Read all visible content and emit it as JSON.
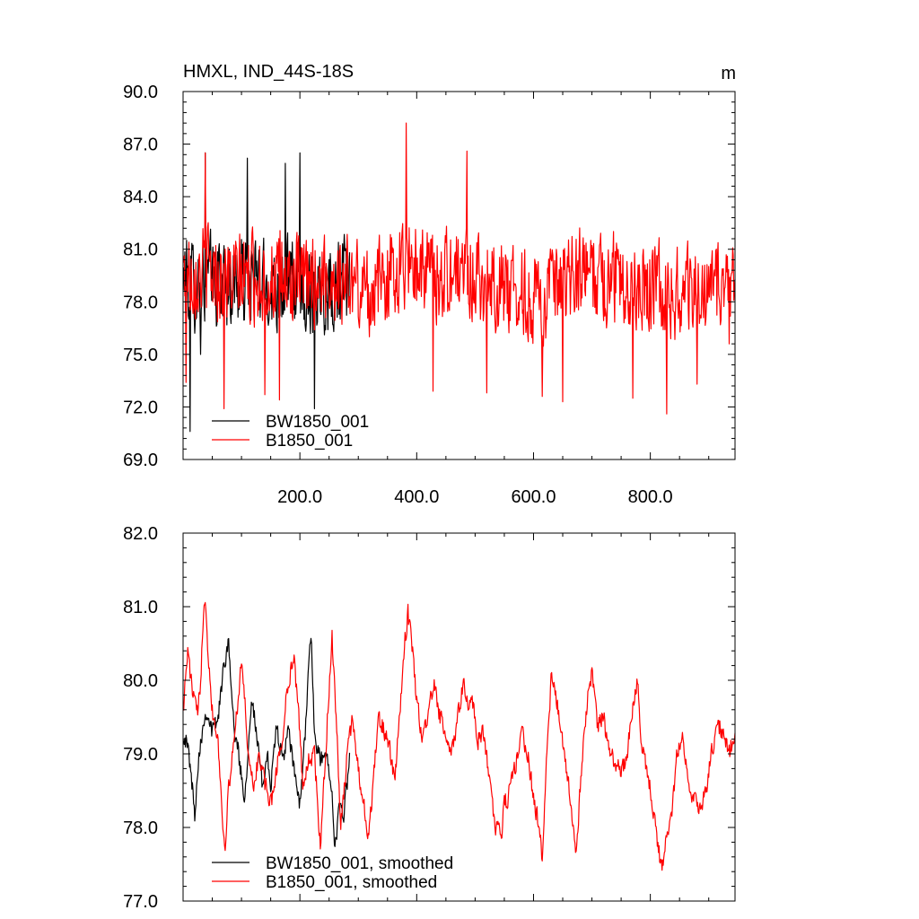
{
  "chart_data": [
    {
      "type": "line",
      "title": "HMXL, IND_44S-18S",
      "units": "m",
      "xlim": [
        0,
        945
      ],
      "ylim": [
        69.0,
        90.0
      ],
      "x_ticks": [
        200,
        400,
        600,
        800
      ],
      "x_tick_labels": [
        "200.0",
        "400.0",
        "600.0",
        "800.0"
      ],
      "y_ticks": [
        69,
        72,
        75,
        78,
        81,
        84,
        87,
        90
      ],
      "y_tick_labels": [
        "69.0",
        "72.0",
        "75.0",
        "78.0",
        "81.0",
        "84.0",
        "87.0",
        "90.0"
      ],
      "legend_position": "bottom-left",
      "noise_amplitude": 2.4,
      "series": [
        {
          "name": "BW1850_001",
          "color": "#000000",
          "x_range": [
            1,
            285
          ],
          "anchors": [
            [
              1,
              79.3
            ],
            [
              20,
              79.0
            ],
            [
              40,
              79.4
            ],
            [
              60,
              79.2
            ],
            [
              80,
              79.0
            ],
            [
              100,
              79.1
            ],
            [
              120,
              79.3
            ],
            [
              140,
              78.8
            ],
            [
              160,
              79.0
            ],
            [
              180,
              79.1
            ],
            [
              200,
              79.0
            ],
            [
              220,
              78.8
            ],
            [
              240,
              78.9
            ],
            [
              260,
              79.0
            ],
            [
              285,
              79.1
            ]
          ],
          "extremes": [
            [
              12,
              70.6
            ],
            [
              30,
              75.0
            ],
            [
              38,
              86.5
            ],
            [
              110,
              86.2
            ],
            [
              175,
              85.9
            ],
            [
              200,
              86.5
            ],
            [
              225,
              71.9
            ]
          ]
        },
        {
          "name": "B1850_001",
          "color": "#ff0000",
          "x_range": [
            1,
            945
          ],
          "anchors": [
            [
              1,
              79.5
            ],
            [
              40,
              79.9
            ],
            [
              80,
              79.2
            ],
            [
              120,
              79.4
            ],
            [
              160,
              79.2
            ],
            [
              200,
              79.1
            ],
            [
              240,
              79.5
            ],
            [
              280,
              79.2
            ],
            [
              320,
              78.6
            ],
            [
              360,
              79.7
            ],
            [
              390,
              80.6
            ],
            [
              430,
              79.5
            ],
            [
              480,
              79.8
            ],
            [
              520,
              79.2
            ],
            [
              560,
              78.8
            ],
            [
              600,
              78.2
            ],
            [
              640,
              78.4
            ],
            [
              680,
              79.6
            ],
            [
              720,
              79.3
            ],
            [
              760,
              79.3
            ],
            [
              800,
              79.0
            ],
            [
              840,
              78.5
            ],
            [
              880,
              78.6
            ],
            [
              920,
              78.8
            ],
            [
              945,
              79.0
            ]
          ],
          "extremes": [
            [
              5,
              73.4
            ],
            [
              38,
              86.5
            ],
            [
              70,
              71.9
            ],
            [
              140,
              72.7
            ],
            [
              165,
              72.4
            ],
            [
              382,
              88.2
            ],
            [
              428,
              72.9
            ],
            [
              486,
              86.6
            ],
            [
              520,
              72.8
            ],
            [
              615,
              72.6
            ],
            [
              650,
              72.3
            ],
            [
              770,
              72.5
            ],
            [
              828,
              71.6
            ],
            [
              880,
              73.3
            ],
            [
              935,
              75.6
            ]
          ]
        }
      ]
    },
    {
      "type": "line",
      "xlim": [
        0,
        945
      ],
      "ylim": [
        77.0,
        82.0
      ],
      "y_ticks": [
        77,
        78,
        79,
        80,
        81,
        82
      ],
      "y_tick_labels": [
        "77.0",
        "78.0",
        "79.0",
        "80.0",
        "81.0",
        "82.0"
      ],
      "legend_position": "bottom-left",
      "noise_amplitude": 0.12,
      "series": [
        {
          "name": "BW1850_001, smoothed",
          "color": "#000000",
          "x_range": [
            1,
            285
          ],
          "anchors": [
            [
              1,
              79.3
            ],
            [
              10,
              79.0
            ],
            [
              15,
              78.6
            ],
            [
              20,
              78.2
            ],
            [
              25,
              78.8
            ],
            [
              30,
              79.2
            ],
            [
              40,
              79.6
            ],
            [
              50,
              79.3
            ],
            [
              60,
              79.5
            ],
            [
              70,
              80.2
            ],
            [
              78,
              80.6
            ],
            [
              85,
              79.5
            ],
            [
              95,
              79.0
            ],
            [
              105,
              78.4
            ],
            [
              110,
              78.9
            ],
            [
              117,
              79.8
            ],
            [
              125,
              79.3
            ],
            [
              135,
              78.6
            ],
            [
              145,
              79.0
            ],
            [
              150,
              78.5
            ],
            [
              160,
              79.4
            ],
            [
              170,
              78.9
            ],
            [
              180,
              79.3
            ],
            [
              190,
              78.8
            ],
            [
              200,
              78.3
            ],
            [
              210,
              79.4
            ],
            [
              215,
              80.3
            ],
            [
              220,
              80.5
            ],
            [
              225,
              79.2
            ],
            [
              235,
              78.9
            ],
            [
              245,
              79.0
            ],
            [
              255,
              78.6
            ],
            [
              260,
              77.7
            ],
            [
              268,
              78.3
            ],
            [
              275,
              78.2
            ],
            [
              285,
              78.9
            ]
          ]
        },
        {
          "name": "B1850_001, smoothed",
          "color": "#ff0000",
          "x_range": [
            1,
            945
          ],
          "anchors": [
            [
              1,
              79.7
            ],
            [
              8,
              80.4
            ],
            [
              15,
              79.9
            ],
            [
              25,
              79.5
            ],
            [
              30,
              80.0
            ],
            [
              35,
              81.0
            ],
            [
              38,
              81.2
            ],
            [
              42,
              80.5
            ],
            [
              50,
              79.6
            ],
            [
              60,
              79.2
            ],
            [
              68,
              78.0
            ],
            [
              72,
              77.8
            ],
            [
              78,
              78.5
            ],
            [
              90,
              79.4
            ],
            [
              100,
              80.3
            ],
            [
              110,
              79.2
            ],
            [
              120,
              78.5
            ],
            [
              130,
              79.0
            ],
            [
              140,
              78.6
            ],
            [
              150,
              78.3
            ],
            [
              160,
              78.8
            ],
            [
              170,
              79.2
            ],
            [
              180,
              80.0
            ],
            [
              190,
              80.3
            ],
            [
              197,
              79.6
            ],
            [
              205,
              78.6
            ],
            [
              215,
              78.9
            ],
            [
              225,
              79.0
            ],
            [
              235,
              77.7
            ],
            [
              240,
              78.4
            ],
            [
              248,
              79.6
            ],
            [
              255,
              80.6
            ],
            [
              262,
              79.5
            ],
            [
              270,
              78.0
            ],
            [
              280,
              78.9
            ],
            [
              290,
              79.5
            ],
            [
              300,
              78.8
            ],
            [
              310,
              78.3
            ],
            [
              318,
              77.8
            ],
            [
              325,
              78.6
            ],
            [
              335,
              79.5
            ],
            [
              345,
              79.3
            ],
            [
              355,
              79.0
            ],
            [
              362,
              78.6
            ],
            [
              370,
              79.4
            ],
            [
              378,
              80.4
            ],
            [
              385,
              80.9
            ],
            [
              392,
              80.5
            ],
            [
              400,
              79.7
            ],
            [
              410,
              79.2
            ],
            [
              420,
              79.6
            ],
            [
              430,
              79.9
            ],
            [
              440,
              79.5
            ],
            [
              450,
              79.2
            ],
            [
              460,
              79.0
            ],
            [
              470,
              79.5
            ],
            [
              480,
              80.0
            ],
            [
              488,
              79.6
            ],
            [
              495,
              79.7
            ],
            [
              505,
              79.2
            ],
            [
              515,
              79.3
            ],
            [
              525,
              78.6
            ],
            [
              535,
              78.0
            ],
            [
              545,
              77.9
            ],
            [
              550,
              78.3
            ],
            [
              560,
              78.5
            ],
            [
              570,
              78.9
            ],
            [
              580,
              79.3
            ],
            [
              590,
              79.0
            ],
            [
              600,
              78.4
            ],
            [
              610,
              78.0
            ],
            [
              615,
              77.5
            ],
            [
              622,
              78.9
            ],
            [
              630,
              80.0
            ],
            [
              640,
              79.7
            ],
            [
              650,
              79.2
            ],
            [
              660,
              78.6
            ],
            [
              672,
              77.6
            ],
            [
              680,
              78.5
            ],
            [
              690,
              79.6
            ],
            [
              700,
              80.1
            ],
            [
              710,
              79.4
            ],
            [
              720,
              79.5
            ],
            [
              730,
              79.0
            ],
            [
              740,
              78.9
            ],
            [
              750,
              78.7
            ],
            [
              760,
              79.0
            ],
            [
              770,
              79.6
            ],
            [
              778,
              80.0
            ],
            [
              785,
              79.1
            ],
            [
              795,
              78.8
            ],
            [
              805,
              78.2
            ],
            [
              812,
              77.8
            ],
            [
              820,
              77.4
            ],
            [
              830,
              78.0
            ],
            [
              838,
              78.3
            ],
            [
              845,
              79.0
            ],
            [
              855,
              79.3
            ],
            [
              865,
              78.6
            ],
            [
              875,
              78.4
            ],
            [
              885,
              78.2
            ],
            [
              895,
              78.5
            ],
            [
              905,
              79.0
            ],
            [
              915,
              79.4
            ],
            [
              925,
              79.3
            ],
            [
              935,
              79.0
            ],
            [
              945,
              79.3
            ]
          ]
        }
      ]
    }
  ]
}
